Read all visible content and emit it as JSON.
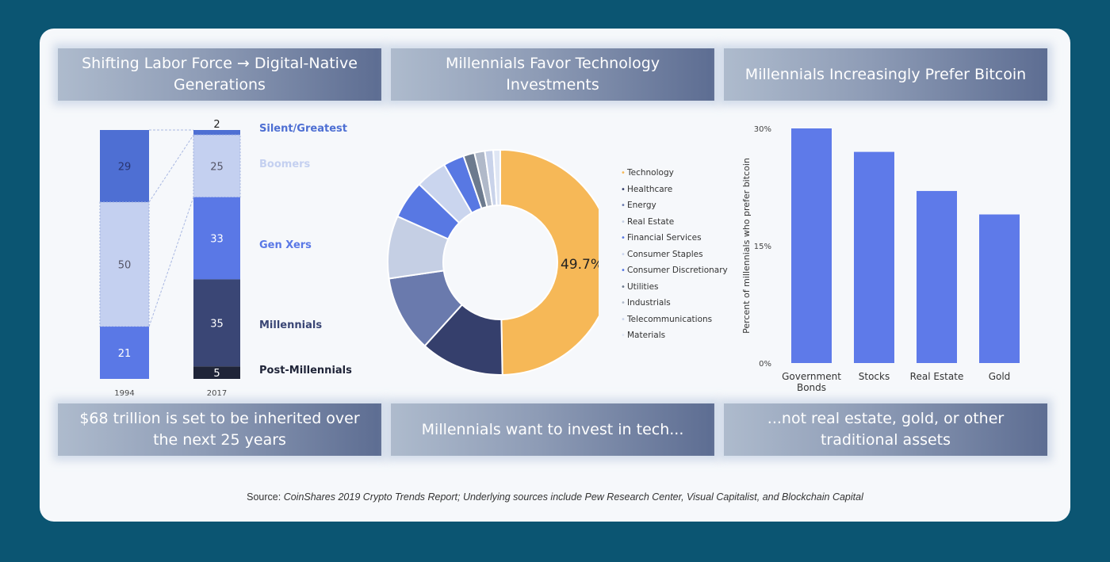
{
  "banners_top": {
    "labor": "Shifting Labor Force → Digital-Native Generations",
    "tech": "Millennials Favor Technology Investments",
    "bitcoin": "Millennials Increasingly Prefer Bitcoin"
  },
  "banners_bottom": {
    "inherit": "$68 trillion is set to be inherited over the next 25 years",
    "invest": "Millennials want to invest in tech...",
    "notre": "...not real estate, gold, or other traditional assets"
  },
  "source": {
    "prefix": "Source: ",
    "text": "CoinShares 2019 Crypto Trends Report; Underlying sources include Pew Research Center, Visual Capitalist, and Blockchain Capital"
  },
  "colors": {
    "silent": "#4e6fd3",
    "boomers": "#c4d0f0",
    "genx": "#5a78e6",
    "millennials": "#3a4675",
    "postmill": "#1f2438",
    "orange": "#f6b857",
    "bar": "#5e7ae9"
  },
  "chart_data": [
    {
      "type": "bar",
      "stacked": true,
      "categories": [
        "1994",
        "2017"
      ],
      "series": [
        {
          "name": "Silent/Greatest",
          "values": [
            29,
            2
          ],
          "color": "#4e6fd3"
        },
        {
          "name": "Boomers",
          "values": [
            50,
            25
          ],
          "color": "#c4d0f0"
        },
        {
          "name": "Gen Xers",
          "values": [
            21,
            33
          ],
          "color": "#5a78e6"
        },
        {
          "name": "Millennials",
          "values": [
            0,
            35
          ],
          "color": "#3a4675"
        },
        {
          "name": "Post-Millennials",
          "values": [
            0,
            5
          ],
          "color": "#1f2438"
        }
      ],
      "data_labels_1994": [
        "29",
        "50",
        "21"
      ],
      "data_labels_2017": [
        "2",
        "25",
        "33",
        "35",
        "5"
      ]
    },
    {
      "type": "pie",
      "center_label": "49.7%",
      "slices": [
        {
          "name": "Technology",
          "value": 49.7,
          "color": "#f6b857"
        },
        {
          "name": "Healthcare",
          "value": 12.0,
          "color": "#353f6c"
        },
        {
          "name": "Energy",
          "value": 11.0,
          "color": "#6a7aad"
        },
        {
          "name": "Real Estate",
          "value": 9.0,
          "color": "#c5cfe4"
        },
        {
          "name": "Financial Services",
          "value": 5.5,
          "color": "#5878e3"
        },
        {
          "name": "Consumer Staples",
          "value": 4.5,
          "color": "#cad5ee"
        },
        {
          "name": "Consumer Discretionary",
          "value": 3.0,
          "color": "#5878e3"
        },
        {
          "name": "Utilities",
          "value": 1.6,
          "color": "#6c7a8e"
        },
        {
          "name": "Industrials",
          "value": 1.5,
          "color": "#b0b9c9"
        },
        {
          "name": "Telecommunications",
          "value": 1.2,
          "color": "#c9d3ea"
        },
        {
          "name": "Materials",
          "value": 1.0,
          "color": "#dfe6f4"
        }
      ]
    },
    {
      "type": "bar",
      "categories": [
        "Government Bonds",
        "Stocks",
        "Real Estate",
        "Gold"
      ],
      "values": [
        30,
        27,
        22,
        19
      ],
      "ylabel": "Percent of millennials who prefer bitcoin",
      "ylim": [
        0,
        30
      ],
      "yticks": [
        "0%",
        "15%",
        "30%"
      ]
    }
  ]
}
